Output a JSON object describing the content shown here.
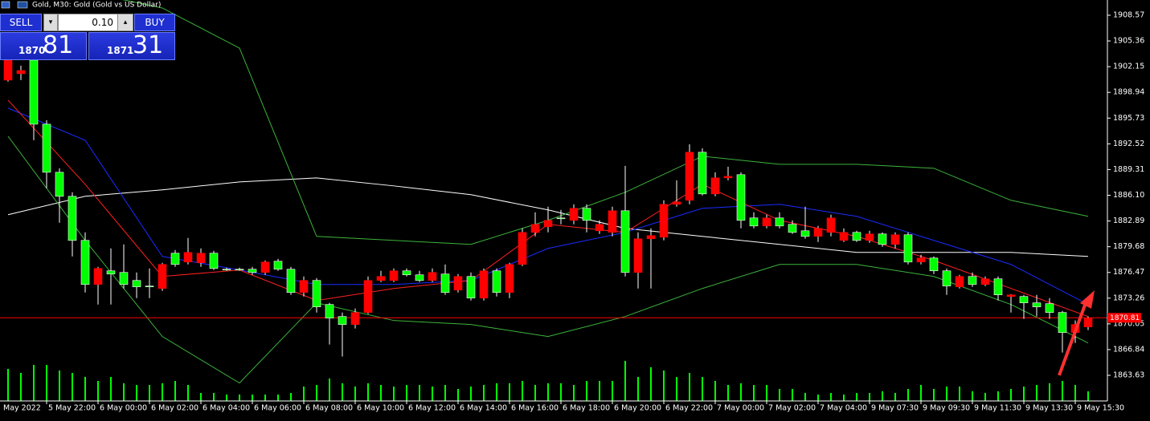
{
  "header": {
    "symbol": "Gold, M30:  Gold (Gold vs US Dollar)"
  },
  "trade_panel": {
    "sell": "SELL",
    "buy": "BUY",
    "volume": "0.10",
    "bid_main": "1870",
    "bid_pips": "81",
    "ask_main": "1871",
    "ask_pips": "31"
  },
  "chart_data": {
    "type": "candlestick",
    "up_color": "#ff0000",
    "down_color": "#00ff00",
    "ylim": [
      1860.43,
      1910.47
    ],
    "yticks": [
      1908.57,
      1905.36,
      1902.15,
      1898.94,
      1895.73,
      1892.52,
      1889.31,
      {
        "value": 1886.1,
        "label": "1886.10"
      },
      1882.89,
      1879.68,
      1876.47,
      1873.26,
      1870.05,
      1866.84,
      1863.63
    ],
    "x_labels": [
      "May 2022",
      "5 May 22:00",
      "6 May 00:00",
      "6 May 02:00",
      "6 May 04:00",
      "6 May 06:00",
      "6 May 08:00",
      "6 May 10:00",
      "6 May 12:00",
      "6 May 14:00",
      "6 May 16:00",
      "6 May 18:00",
      "6 May 20:00",
      "6 May 22:00",
      "7 May 00:00",
      "7 May 02:00",
      "7 May 04:00",
      "9 May 07:30",
      "9 May 09:30",
      "9 May 11:30",
      "9 May 13:30",
      "9 May 15:30"
    ],
    "current_price": 1870.81,
    "ohlc": [
      [
        1900.47,
        1903.47,
        1900.27,
        1902.97
      ],
      [
        1901.27,
        1902.27,
        1900.47,
        1901.67
      ],
      [
        1902.97,
        1903.47,
        1892.97,
        1894.97
      ],
      [
        1894.97,
        1895.47,
        1886.97,
        1888.97
      ],
      [
        1888.97,
        1889.47,
        1882.67,
        1885.97
      ],
      [
        1885.97,
        1886.47,
        1878.47,
        1880.47
      ],
      [
        1880.47,
        1881.47,
        1873.97,
        1874.97
      ],
      [
        1874.97,
        1877.17,
        1872.47,
        1876.97
      ],
      [
        1876.67,
        1879.47,
        1872.47,
        1876.27
      ],
      [
        1876.47,
        1879.97,
        1874.47,
        1874.97
      ],
      [
        1875.47,
        1876.47,
        1873.27,
        1874.67
      ],
      [
        1874.77,
        1876.97,
        1873.27,
        1874.67
      ],
      [
        1874.47,
        1877.67,
        1874.17,
        1877.47
      ],
      [
        1878.87,
        1879.27,
        1877.17,
        1877.47
      ],
      [
        1877.77,
        1880.77,
        1877.47,
        1878.97
      ],
      [
        1877.67,
        1879.47,
        1877.17,
        1878.87
      ],
      [
        1878.87,
        1879.17,
        1876.77,
        1876.97
      ],
      [
        1876.87,
        1877.07,
        1876.67,
        1876.87
      ],
      [
        1876.87,
        1877.07,
        1876.67,
        1876.77
      ],
      [
        1876.87,
        1877.17,
        1876.17,
        1876.47
      ],
      [
        1876.47,
        1877.97,
        1876.17,
        1877.77
      ],
      [
        1877.87,
        1878.17,
        1876.67,
        1876.87
      ],
      [
        1876.87,
        1877.17,
        1873.67,
        1873.97
      ],
      [
        1873.97,
        1875.97,
        1873.47,
        1875.47
      ],
      [
        1875.47,
        1875.77,
        1871.47,
        1872.17
      ],
      [
        1872.47,
        1872.67,
        1867.47,
        1870.77
      ],
      [
        1870.97,
        1871.47,
        1865.97,
        1869.97
      ],
      [
        1869.97,
        1871.97,
        1869.47,
        1871.47
      ],
      [
        1871.47,
        1875.97,
        1871.27,
        1875.47
      ],
      [
        1875.47,
        1876.67,
        1875.27,
        1875.97
      ],
      [
        1875.47,
        1876.97,
        1875.27,
        1876.67
      ],
      [
        1876.67,
        1876.97,
        1875.97,
        1876.17
      ],
      [
        1876.17,
        1876.67,
        1875.27,
        1875.47
      ],
      [
        1875.47,
        1876.97,
        1875.27,
        1876.47
      ],
      [
        1876.27,
        1877.47,
        1873.67,
        1873.97
      ],
      [
        1874.27,
        1876.27,
        1873.97,
        1875.97
      ],
      [
        1875.97,
        1876.47,
        1872.97,
        1873.27
      ],
      [
        1873.27,
        1876.97,
        1872.97,
        1876.67
      ],
      [
        1876.67,
        1876.97,
        1873.47,
        1873.97
      ],
      [
        1873.97,
        1877.67,
        1873.27,
        1877.47
      ],
      [
        1877.47,
        1881.97,
        1877.27,
        1881.47
      ],
      [
        1881.47,
        1883.97,
        1880.97,
        1882.47
      ],
      [
        1882.17,
        1884.67,
        1881.47,
        1882.97
      ],
      [
        1883.27,
        1884.27,
        1882.47,
        1883.17
      ],
      [
        1882.97,
        1884.97,
        1882.47,
        1884.47
      ],
      [
        1884.47,
        1884.97,
        1881.47,
        1882.97
      ],
      [
        1881.67,
        1882.97,
        1881.27,
        1882.47
      ],
      [
        1881.47,
        1884.67,
        1880.97,
        1884.17
      ],
      [
        1884.17,
        1889.77,
        1875.97,
        1876.47
      ],
      [
        1876.47,
        1881.47,
        1874.47,
        1880.67
      ],
      [
        1880.67,
        1881.97,
        1874.47,
        1881.07
      ],
      [
        1880.87,
        1885.47,
        1880.47,
        1884.97
      ],
      [
        1884.97,
        1887.97,
        1884.67,
        1885.27
      ],
      [
        1885.47,
        1892.47,
        1884.97,
        1891.47
      ],
      [
        1891.47,
        1891.97,
        1886.07,
        1886.27
      ],
      [
        1886.27,
        1888.97,
        1885.97,
        1888.27
      ],
      [
        1888.27,
        1889.67,
        1887.97,
        1888.47
      ],
      [
        1888.67,
        1888.97,
        1881.97,
        1882.97
      ],
      [
        1883.27,
        1883.97,
        1881.97,
        1882.27
      ],
      [
        1882.27,
        1883.67,
        1881.97,
        1883.27
      ],
      [
        1883.27,
        1883.97,
        1881.97,
        1882.27
      ],
      [
        1882.47,
        1882.97,
        1881.27,
        1881.47
      ],
      [
        1881.67,
        1884.67,
        1880.67,
        1880.97
      ],
      [
        1880.97,
        1882.27,
        1880.27,
        1881.97
      ],
      [
        1881.47,
        1883.67,
        1880.97,
        1883.27
      ],
      [
        1880.47,
        1881.97,
        1880.27,
        1881.47
      ],
      [
        1881.47,
        1881.67,
        1880.27,
        1880.47
      ],
      [
        1880.47,
        1881.67,
        1880.17,
        1881.27
      ],
      [
        1881.27,
        1881.47,
        1879.67,
        1879.97
      ],
      [
        1879.97,
        1881.47,
        1879.47,
        1881.17
      ],
      [
        1881.17,
        1881.47,
        1877.47,
        1877.77
      ],
      [
        1877.77,
        1878.67,
        1877.47,
        1878.27
      ],
      [
        1878.27,
        1878.47,
        1876.27,
        1876.67
      ],
      [
        1876.67,
        1876.97,
        1873.67,
        1874.77
      ],
      [
        1874.67,
        1876.17,
        1874.47,
        1875.97
      ],
      [
        1875.97,
        1876.47,
        1874.67,
        1874.97
      ],
      [
        1874.97,
        1875.97,
        1874.77,
        1875.67
      ],
      [
        1875.67,
        1875.97,
        1872.97,
        1873.67
      ],
      [
        1873.47,
        1873.77,
        1871.47,
        1873.67
      ],
      [
        1873.47,
        1873.67,
        1870.67,
        1872.67
      ],
      [
        1872.67,
        1873.67,
        1870.97,
        1872.17
      ],
      [
        1872.57,
        1873.27,
        1870.67,
        1871.47
      ],
      [
        1871.47,
        1871.67,
        1866.47,
        1868.97
      ],
      [
        1868.97,
        1870.47,
        1867.67,
        1869.97
      ],
      [
        1869.67,
        1870.97,
        1869.27,
        1870.77
      ]
    ],
    "volume_lim": [
      0,
      100
    ],
    "volumes": [
      40,
      35,
      45,
      45,
      38,
      35,
      30,
      25,
      30,
      22,
      20,
      20,
      22,
      25,
      20,
      10,
      10,
      8,
      8,
      8,
      8,
      8,
      10,
      18,
      20,
      28,
      22,
      18,
      22,
      20,
      18,
      20,
      20,
      18,
      20,
      15,
      18,
      20,
      22,
      22,
      25,
      20,
      22,
      22,
      20,
      25,
      25,
      25,
      50,
      30,
      42,
      38,
      30,
      35,
      30,
      25,
      20,
      22,
      20,
      20,
      15,
      15,
      10,
      8,
      10,
      8,
      10,
      10,
      12,
      10,
      15,
      20,
      15,
      18,
      18,
      12,
      10,
      12,
      15,
      18,
      20,
      22,
      25,
      20,
      12
    ],
    "volume_color": "#00ff00",
    "indicator_x": [
      0,
      6,
      12,
      18,
      24,
      30,
      36,
      42,
      48,
      54,
      60,
      66,
      72,
      78,
      84
    ],
    "series": [
      {
        "color": "#ffffff",
        "values": [
          1883.67,
          1885.97,
          1886.77,
          1887.77,
          1888.27,
          1887.27,
          1886.17,
          1884.27,
          1881.97,
          1880.97,
          1879.97,
          1878.97,
          1878.97,
          1878.97,
          1878.47
        ]
      },
      {
        "color": "#1a2cff",
        "values": [
          1896.97,
          1892.97,
          1878.47,
          1876.77,
          1874.97,
          1874.97,
          1875.47,
          1879.47,
          1881.47,
          1884.47,
          1884.97,
          1883.47,
          1880.47,
          1877.47,
          1872.47
        ]
      },
      {
        "color": "#ff2020",
        "values": [
          1897.97,
          1887.47,
          1875.97,
          1876.77,
          1872.97,
          1874.47,
          1875.47,
          1882.47,
          1881.47,
          1887.47,
          1882.97,
          1880.97,
          1877.97,
          1874.47,
          1870.97
        ]
      },
      {
        "color": "#3cb43c",
        "values": [
          1912.0,
          1911.5,
          1909.47,
          1904.47,
          1880.97,
          1880.47,
          1879.97,
          1882.97,
          1886.47,
          1890.97,
          1889.97,
          1889.97,
          1889.47,
          1885.47,
          1883.47
        ]
      },
      {
        "color": "#3cb43c",
        "values": [
          1893.47,
          1880.47,
          1868.47,
          1862.67,
          1872.67,
          1870.47,
          1869.97,
          1868.47,
          1870.97,
          1874.47,
          1877.47,
          1877.47,
          1875.97,
          1872.47,
          1867.67
        ]
      }
    ]
  }
}
